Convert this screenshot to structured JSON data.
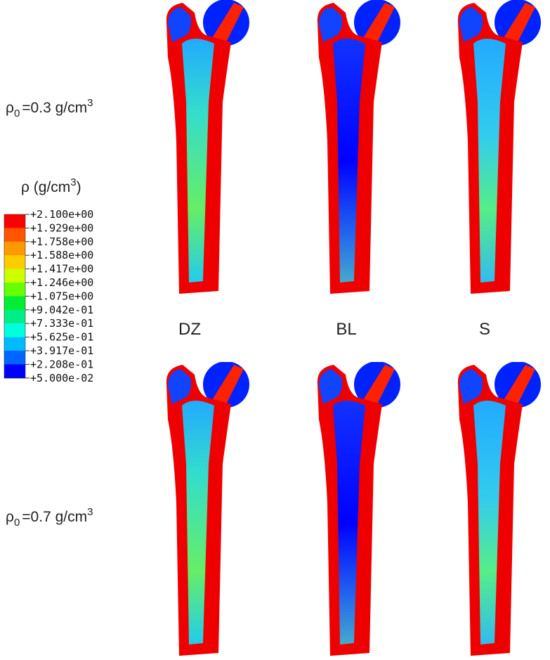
{
  "row_labels": [
    {
      "symbol": "ρ",
      "subscript": "0",
      "text": "=0.3 g/cm",
      "superscript": "3"
    },
    {
      "symbol": "ρ",
      "subscript": "0",
      "text": "=0.7 g/cm",
      "superscript": "3"
    }
  ],
  "legend": {
    "title": {
      "text": "ρ (g/cm",
      "superscript": "3",
      "close": ")"
    },
    "labels": [
      "+2.100e+00",
      "+1.929e+00",
      "+1.758e+00",
      "+1.588e+00",
      "+1.417e+00",
      "+1.246e+00",
      "+1.075e+00",
      "+9.042e-01",
      "+7.333e-01",
      "+5.625e-01",
      "+3.917e-01",
      "+2.208e-01",
      "+5.000e-02"
    ],
    "colors": [
      "#ff0000",
      "#ff5500",
      "#ff9900",
      "#ffcc00",
      "#ccff00",
      "#66ff00",
      "#00ee33",
      "#00ee88",
      "#00ffdd",
      "#00bbff",
      "#0066ff",
      "#0000ff"
    ]
  },
  "columns": [
    "DZ",
    "BL",
    "S"
  ]
}
